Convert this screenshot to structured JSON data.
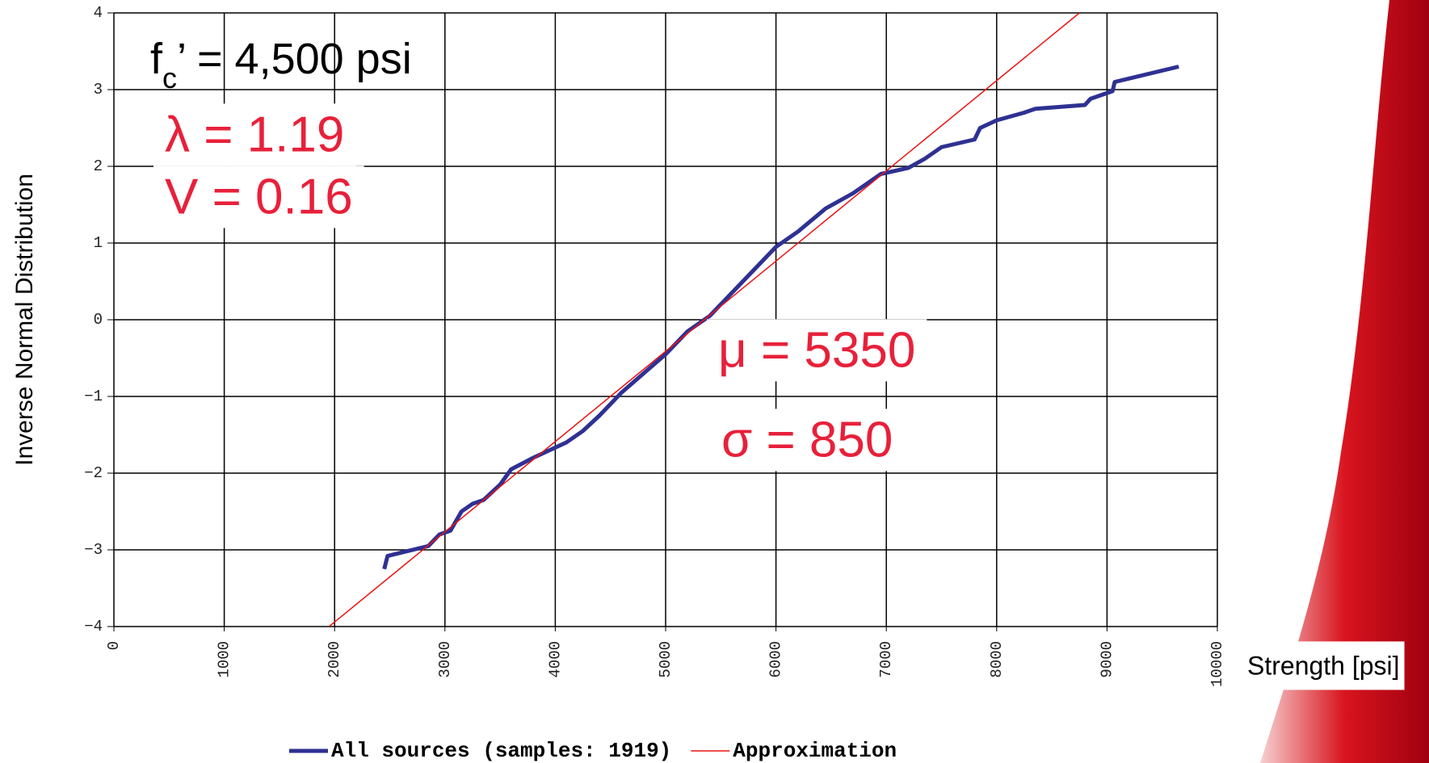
{
  "chart_data": {
    "type": "line",
    "xlabel": "Strength [psi]",
    "ylabel": "Inverse Normal Distribution",
    "xlim": [
      0,
      10000
    ],
    "ylim": [
      -4,
      4
    ],
    "xticks": [
      0,
      1000,
      2000,
      3000,
      4000,
      5000,
      6000,
      7000,
      8000,
      9000,
      10000
    ],
    "yticks": [
      {
        "value": -4,
        "label": "−4"
      },
      {
        "value": -3,
        "label": "−3"
      },
      {
        "value": -2,
        "label": "−2"
      },
      {
        "value": -1,
        "label": "−1"
      },
      0,
      1,
      2,
      3,
      4
    ],
    "grid": true,
    "legend": "bottom",
    "series": [
      {
        "name": "All sources (samples: 1919)",
        "color": "#2e3192",
        "x": [
          2450,
          2480,
          2850,
          2950,
          3050,
          3150,
          3250,
          3350,
          3500,
          3600,
          3800,
          4100,
          4250,
          4400,
          4600,
          4800,
          5000,
          5200,
          5400,
          5600,
          5800,
          6000,
          6200,
          6450,
          6700,
          6950,
          7200,
          7350,
          7500,
          7800,
          7850,
          8000,
          8250,
          8350,
          8800,
          8850,
          9050,
          9070,
          9650
        ],
        "values": [
          -3.25,
          -3.08,
          -2.95,
          -2.8,
          -2.75,
          -2.5,
          -2.4,
          -2.35,
          -2.15,
          -1.95,
          -1.8,
          -1.6,
          -1.45,
          -1.25,
          -0.95,
          -0.7,
          -0.45,
          -0.15,
          0.05,
          0.35,
          0.65,
          0.95,
          1.15,
          1.45,
          1.65,
          1.9,
          1.98,
          2.1,
          2.25,
          2.35,
          2.5,
          2.6,
          2.7,
          2.75,
          2.8,
          2.88,
          2.98,
          3.1,
          3.3
        ]
      },
      {
        "name": "Approximation",
        "color": "#ee1111",
        "x": [
          1950,
          8750
        ],
        "values": [
          -4,
          4
        ]
      }
    ],
    "annotations": [
      {
        "base": "f",
        "sub": "c",
        "rest": "’ =  4,500 psi",
        "color": "#000000"
      },
      {
        "text": "λ = 1.19",
        "color": "#e8203a"
      },
      {
        "text": "V = 0.16",
        "color": "#e8203a"
      },
      {
        "text": "μ = 5350",
        "color": "#e8203a"
      },
      {
        "text": "σ = 850",
        "color": "#e8203a"
      }
    ]
  }
}
